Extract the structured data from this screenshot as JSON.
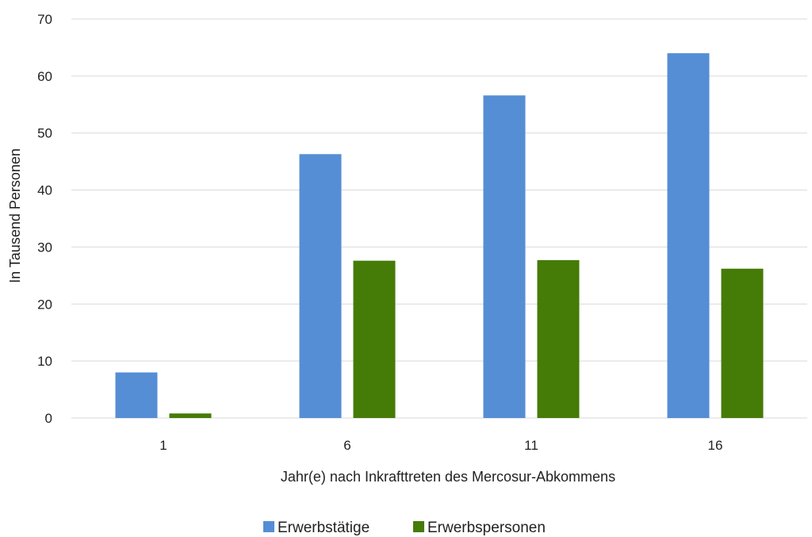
{
  "chart_data": {
    "type": "bar",
    "title": "",
    "xlabel": "Jahr(e) nach Inkrafttreten des Mercosur-Abkommens",
    "ylabel": "In Tausend Personen",
    "categories": [
      "1",
      "6",
      "11",
      "16"
    ],
    "series": [
      {
        "name": "Erwerbstätige",
        "values": [
          8,
          46.3,
          56.6,
          64
        ],
        "color": "#558ed5"
      },
      {
        "name": "Erwerbspersonen",
        "values": [
          0.8,
          27.6,
          27.7,
          26.2
        ],
        "color": "#457b07"
      }
    ],
    "ylim": [
      0,
      70
    ],
    "yticks": [
      "0",
      "10",
      "20",
      "30",
      "40",
      "50",
      "60",
      "70"
    ],
    "grid": true,
    "legend_position": "bottom"
  }
}
